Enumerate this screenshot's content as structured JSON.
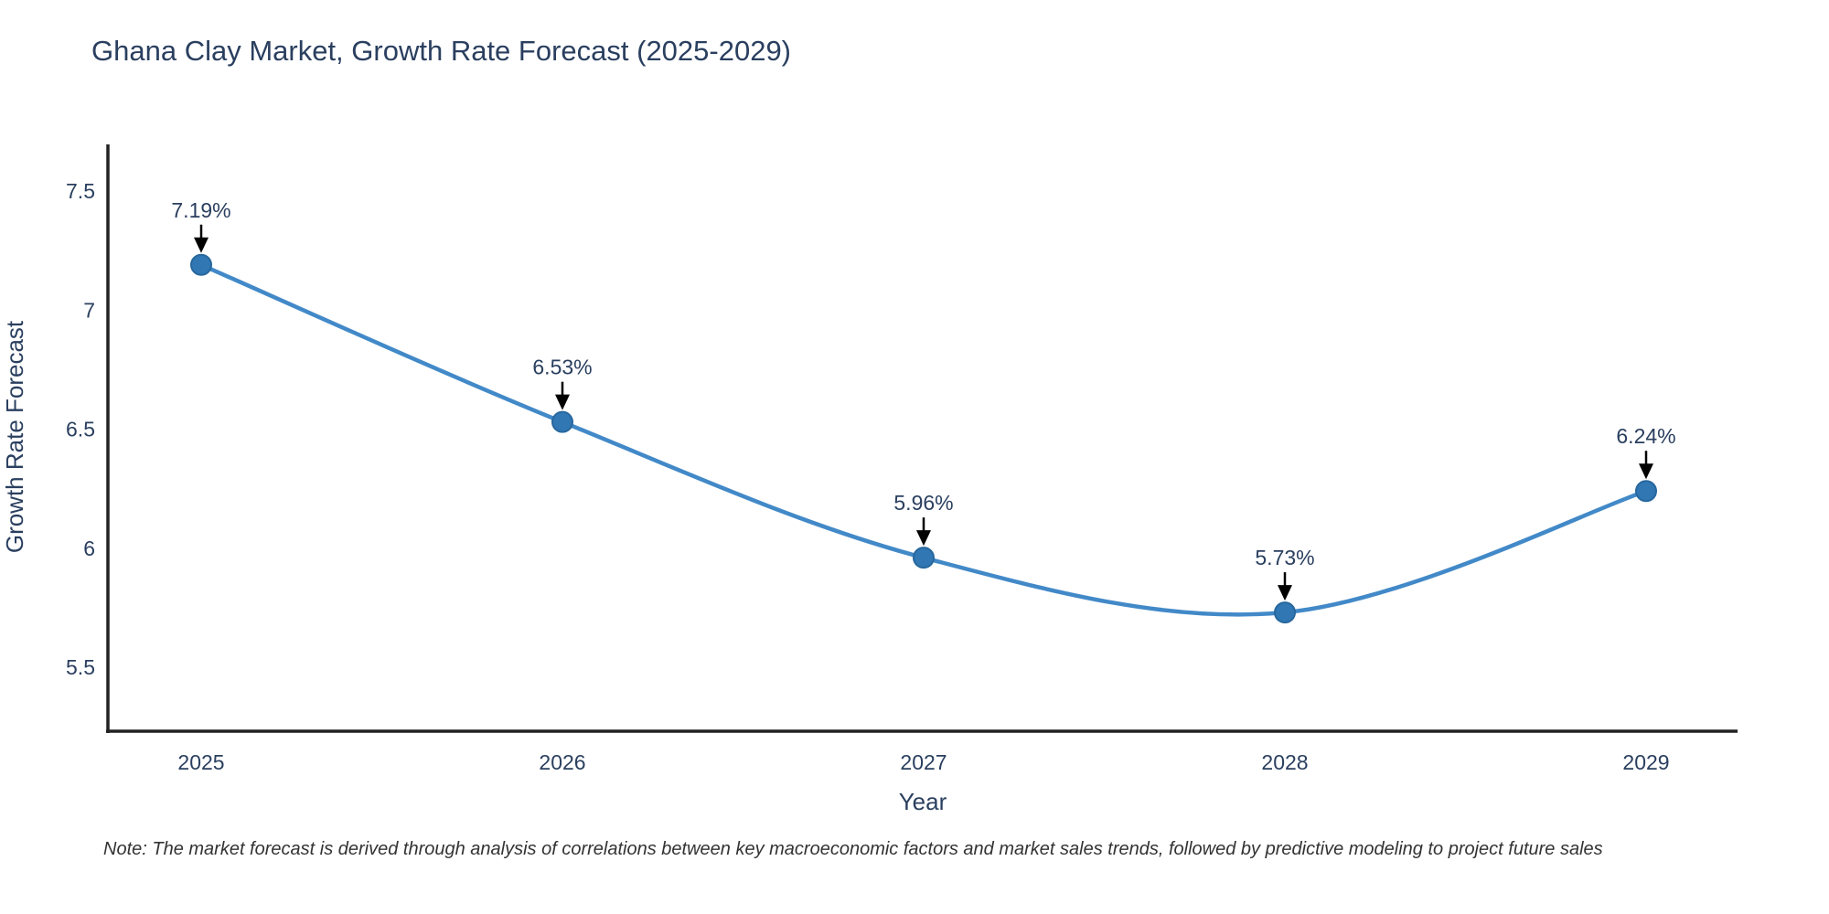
{
  "title": "Ghana Clay Market, Growth Rate Forecast (2025-2029)",
  "note": "Note: The market forecast is derived through analysis of correlations between key macroeconomic factors and market sales trends, followed by predictive modeling to project future sales",
  "chart_data": {
    "type": "line",
    "title": "Ghana Clay Market, Growth Rate Forecast (2025-2029)",
    "xlabel": "Year",
    "ylabel": "Growth Rate Forecast",
    "categories": [
      "2025",
      "2026",
      "2027",
      "2028",
      "2029"
    ],
    "series": [
      {
        "name": "Growth Rate Forecast",
        "values": [
          7.19,
          6.53,
          5.96,
          5.73,
          6.24
        ]
      }
    ],
    "point_labels": [
      "7.19%",
      "6.53%",
      "5.96%",
      "5.73%",
      "6.24%"
    ],
    "annotation_style": "black-arrow-pointing-down-to-point",
    "line_shape": "spline",
    "markers": true,
    "grid": false,
    "legend": "none",
    "ylim": [
      5.23,
      7.69
    ],
    "yticks": [
      7.5,
      7.0,
      6.5,
      6.0,
      5.5
    ],
    "ytick_labels": [
      "7.5",
      "7",
      "6.5",
      "6",
      "5.5"
    ],
    "colors": {
      "line": "#4289c8",
      "marker_fill": "#3077b4",
      "marker_edge": "#27679d",
      "text": "#2a3f5f",
      "axis_line": "#222222",
      "arrow": "#000000"
    }
  }
}
